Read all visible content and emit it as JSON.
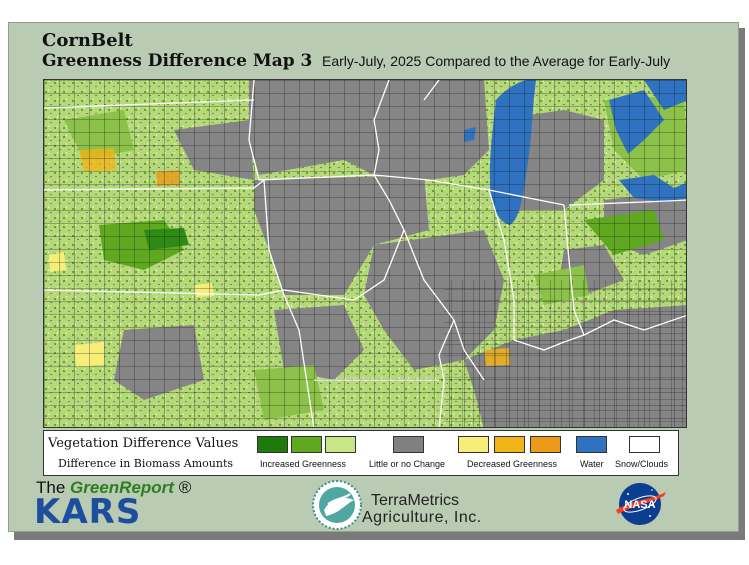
{
  "header": {
    "title": "CornBelt",
    "subtitle_bold": "Greenness Difference Map 3",
    "period": "Early-July, 2025 Compared to the Average for Early-July"
  },
  "legend": {
    "title": "Vegetation Difference Values",
    "subtitle": "Difference in Biomass Amounts",
    "groups": [
      {
        "label": "Increased Greenness",
        "colors": [
          "#1f7a0c",
          "#5fa81f",
          "#c7e685"
        ]
      },
      {
        "label": "Little or no Change",
        "colors": [
          "#808080"
        ]
      },
      {
        "label": "Decreased Greenness",
        "colors": [
          "#f7ee7a",
          "#f0b419",
          "#ec9a19"
        ]
      },
      {
        "label": "Water",
        "colors": [
          "#2f72bf"
        ]
      },
      {
        "label": "Snow/Clouds",
        "colors": [
          "#ffffff"
        ]
      }
    ]
  },
  "logos": {
    "green_report_prefix": "The ",
    "green_report_name": "GreenReport",
    "green_report_mark": "®",
    "kars": "KARS",
    "terrametrics_line1": "TerraMetrics",
    "terrametrics_line2": "Agriculture, Inc.",
    "nasa": "NASA"
  },
  "map_colors": {
    "increased_dark": "#1f7a0c",
    "increased_mid": "#5fa81f",
    "increased_light": "#c7e685",
    "no_change": "#808080",
    "decreased_light": "#f7ee7a",
    "decreased_mid": "#f0b419",
    "water": "#2f72bf"
  }
}
